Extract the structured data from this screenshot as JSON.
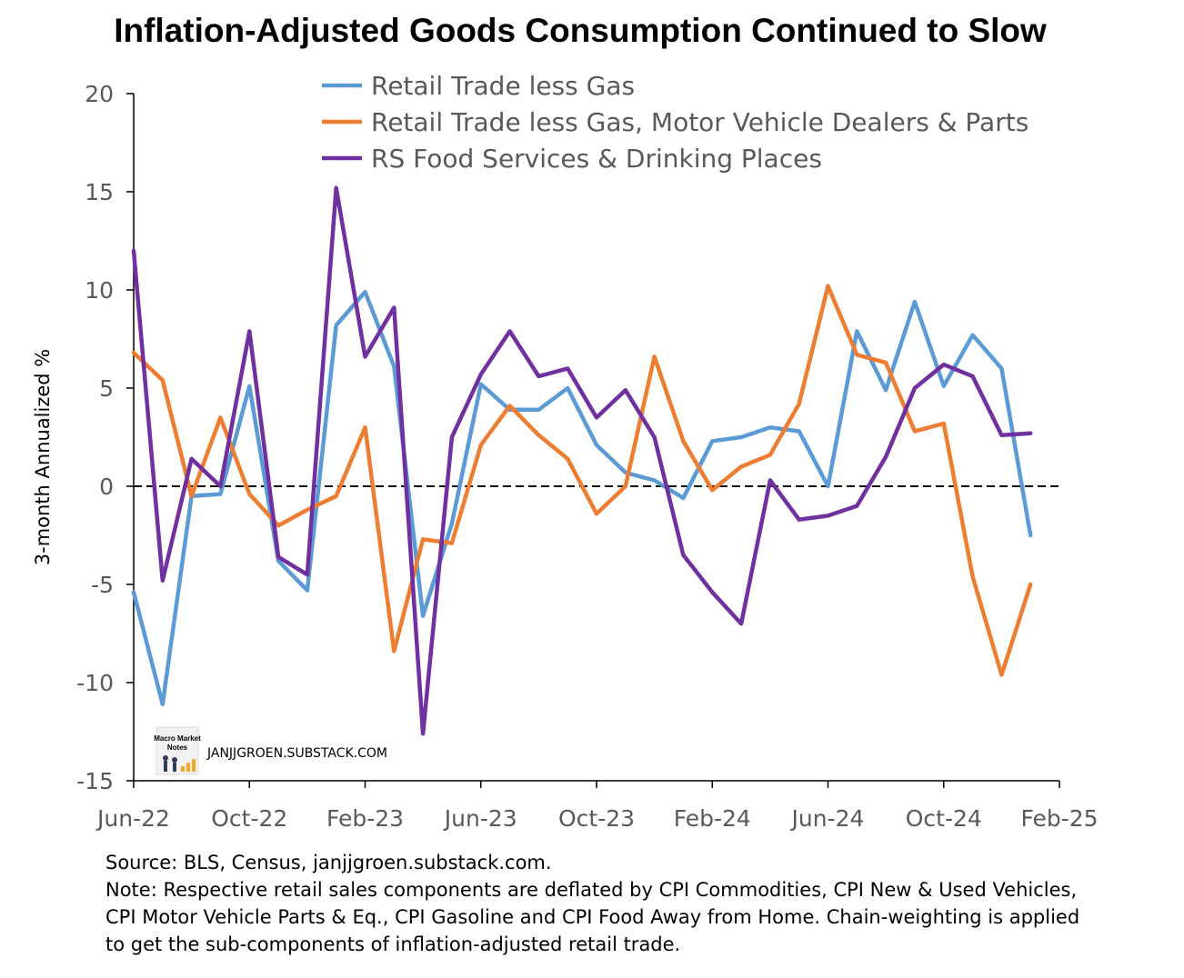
{
  "chart_data": {
    "type": "line",
    "title": "Inflation-Adjusted Goods Consumption Continued to Slow",
    "ylabel": "3-month Annualized %",
    "xlabel": "",
    "ylim": [
      -15,
      20
    ],
    "yticks": [
      20,
      15,
      10,
      5,
      0,
      -5,
      -10,
      -15
    ],
    "ytick_labels": [
      "20",
      "15",
      "10",
      "5",
      "0",
      "-5",
      "-10",
      "-15"
    ],
    "xticks": [
      "Jun-22",
      "Oct-22",
      "Feb-23",
      "Jun-23",
      "Oct-23",
      "Feb-24",
      "Jun-24",
      "Oct-24",
      "Feb-25"
    ],
    "x": [
      "Jun-22",
      "Jul-22",
      "Aug-22",
      "Sep-22",
      "Oct-22",
      "Nov-22",
      "Dec-22",
      "Jan-23",
      "Feb-23",
      "Mar-23",
      "Apr-23",
      "May-23",
      "Jun-23",
      "Jul-23",
      "Aug-23",
      "Sep-23",
      "Oct-23",
      "Nov-23",
      "Dec-23",
      "Jan-24",
      "Feb-24",
      "Mar-24",
      "Apr-24",
      "May-24",
      "Jun-24",
      "Jul-24",
      "Aug-24",
      "Sep-24",
      "Oct-24",
      "Nov-24",
      "Dec-24",
      "Jan-25"
    ],
    "zero_line": "dashed",
    "grid": false,
    "legend_position": "top-center",
    "series": [
      {
        "name": "Retail Trade less Gas",
        "color": "#5b9bd5",
        "values": [
          -5.4,
          -11.1,
          -0.5,
          -0.4,
          5.1,
          -3.8,
          -5.3,
          8.2,
          9.9,
          6.1,
          -6.6,
          -1.9,
          5.2,
          3.9,
          3.9,
          5.0,
          2.1,
          0.7,
          0.3,
          -0.6,
          2.3,
          2.5,
          3.0,
          2.8,
          0.0,
          7.9,
          4.9,
          9.4,
          5.1,
          7.7,
          6.0,
          -2.5
        ]
      },
      {
        "name": "Retail Trade less Gas, Motor Vehicle Dealers & Parts",
        "color": "#ed7d31",
        "values": [
          6.8,
          5.4,
          -0.5,
          3.5,
          -0.4,
          -2.0,
          -1.2,
          -0.5,
          3.0,
          -8.4,
          -2.7,
          -2.9,
          2.1,
          4.1,
          2.6,
          1.4,
          -1.4,
          0.0,
          6.6,
          2.3,
          -0.2,
          1.0,
          1.6,
          4.2,
          10.2,
          6.7,
          6.3,
          2.8,
          3.2,
          -4.6,
          -9.6,
          -5.0
        ]
      },
      {
        "name": "RS Food Services & Drinking Places",
        "color": "#7030a0",
        "values": [
          12.0,
          -4.8,
          1.4,
          0.0,
          7.9,
          -3.6,
          -4.5,
          15.2,
          6.6,
          9.1,
          -12.6,
          2.5,
          5.7,
          7.9,
          5.6,
          6.0,
          3.5,
          4.9,
          2.5,
          -3.5,
          -5.4,
          -7.0,
          0.3,
          -1.7,
          -1.5,
          -1.0,
          1.5,
          5.0,
          6.2,
          5.6,
          2.6,
          2.7
        ]
      }
    ]
  },
  "watermark": {
    "text": "JANJJGROEN.SUBSTACK.COM",
    "logo_text_1": "Macro Market",
    "logo_text_2": "Notes"
  },
  "notes": {
    "source": "Source: BLS, Census, janjjgroen.substack.com.",
    "note_line1": "Note: Respective retail sales components are deflated by CPI Commodities, CPI New & Used Vehicles,",
    "note_line2": "CPI Motor Vehicle Parts & Eq., CPI Gasoline and CPI Food Away from Home. Chain-weighting is applied",
    "note_line3": "to get the sub-components of inflation-adjusted retail trade."
  }
}
